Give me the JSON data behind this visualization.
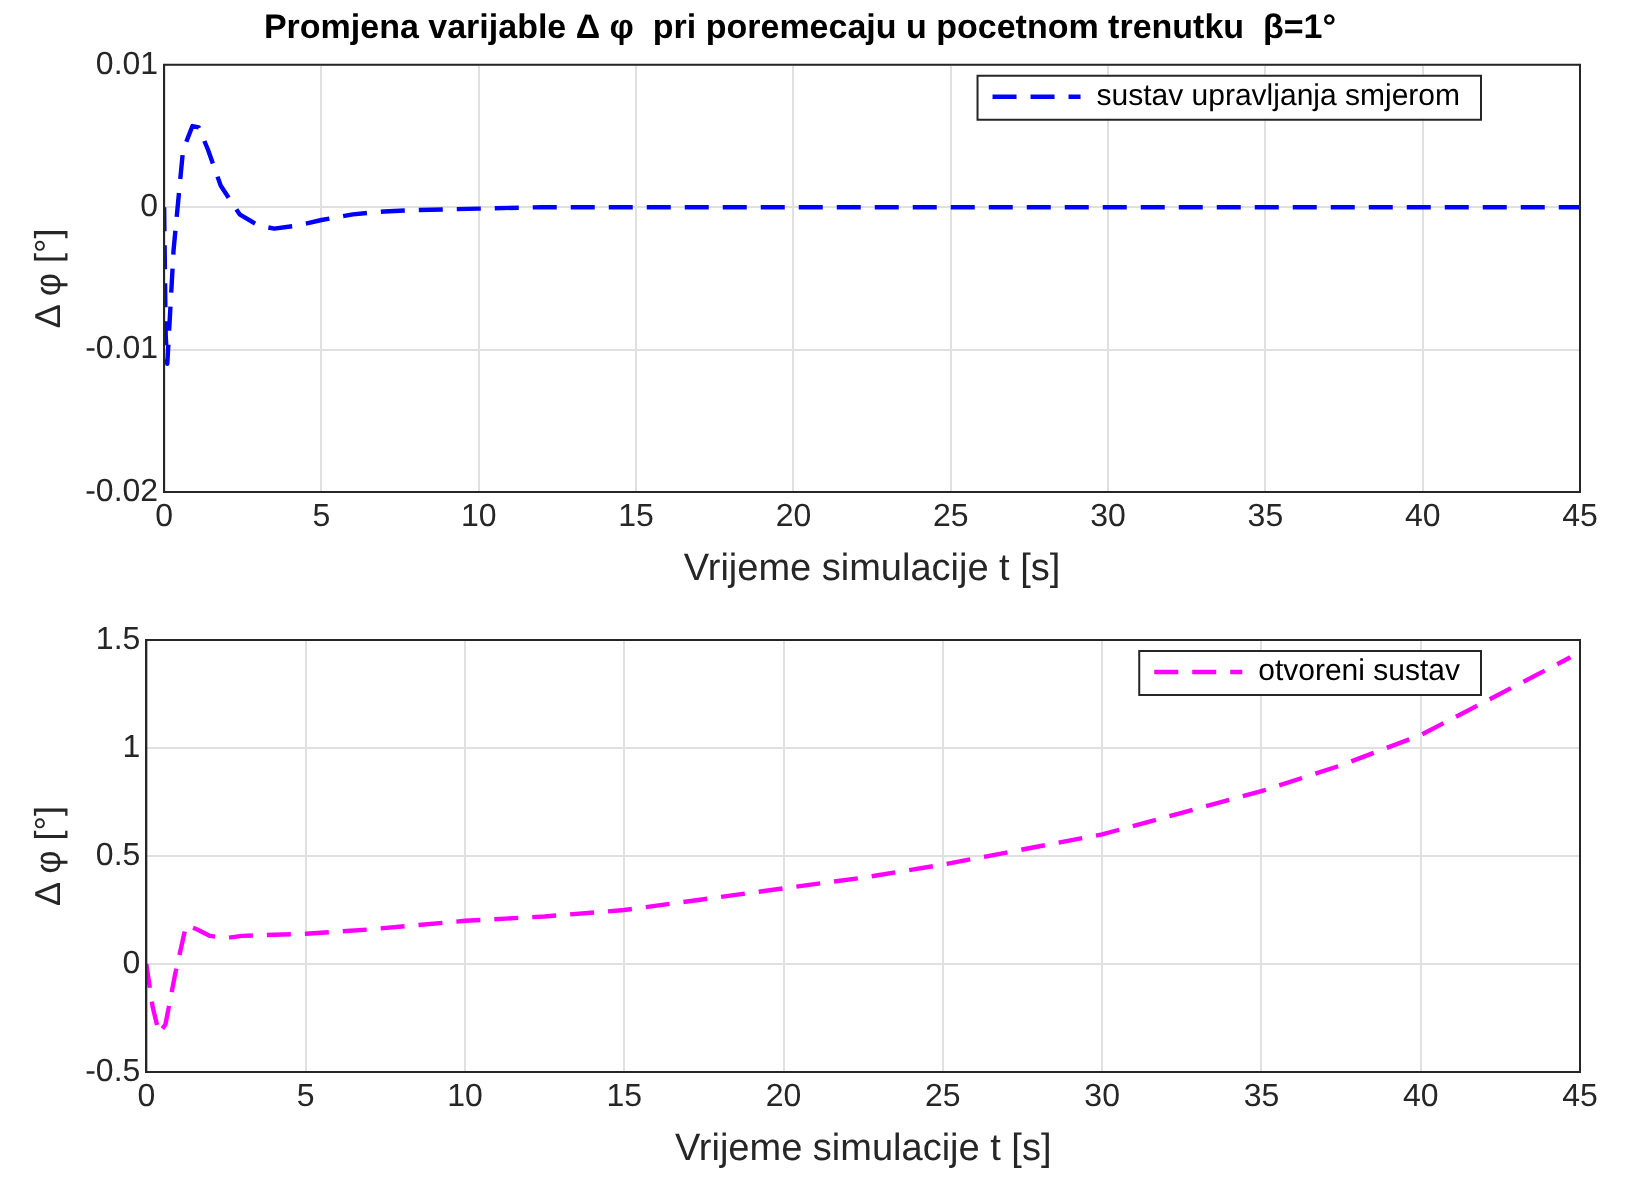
{
  "chart_data": [
    {
      "type": "line",
      "title": "Promjena varijable Δ φ  pri poremecaju u pocetnom trenutku  β=1°",
      "xlabel": "Vrijeme simulacije t [s]",
      "ylabel": "Δ φ [°]",
      "xlim": [
        0,
        45
      ],
      "xticks": [
        0,
        5,
        10,
        15,
        20,
        25,
        30,
        35,
        40,
        45
      ],
      "ylim": [
        -0.02,
        0.01
      ],
      "yticks": [
        -0.02,
        -0.01,
        0,
        0.01
      ],
      "grid": true,
      "legend": "top right",
      "line_style": "dashed",
      "marker": "none",
      "series": [
        {
          "name": "sustav upravljanja smjerom",
          "color": "#0000ff",
          "x": [
            0,
            0.05,
            0.1,
            0.3,
            0.6,
            0.9,
            1.1,
            1.4,
            1.8,
            2.4,
            3.0,
            3.5,
            4.2,
            5,
            6,
            7,
            8,
            10,
            12,
            15,
            20,
            25,
            30,
            35,
            40,
            45
          ],
          "values": [
            0,
            -0.009,
            -0.011,
            -0.003,
            0.004,
            0.0057,
            0.0056,
            0.004,
            0.0015,
            -0.0005,
            -0.0013,
            -0.0015,
            -0.0013,
            -0.0009,
            -0.0005,
            -0.0003,
            -0.0002,
            -0.0001,
            0,
            0,
            0,
            0,
            0,
            0,
            0,
            0
          ]
        }
      ]
    },
    {
      "type": "line",
      "xlabel": "Vrijeme simulacije t [s]",
      "ylabel": "Δ φ [°]",
      "xlim": [
        0,
        45
      ],
      "xticks": [
        0,
        5,
        10,
        15,
        20,
        25,
        30,
        35,
        40,
        45
      ],
      "ylim": [
        -0.5,
        1.5
      ],
      "yticks": [
        -0.5,
        0,
        0.5,
        1,
        1.5
      ],
      "grid": true,
      "legend": "top right",
      "line_style": "dashed",
      "marker": "none",
      "series": [
        {
          "name": "otvoreni sustav",
          "color": "#ff00ff",
          "x": [
            0,
            0.2,
            0.4,
            0.6,
            0.9,
            1.25,
            1.6,
            2.0,
            2.5,
            3,
            5,
            7,
            10,
            12.5,
            15,
            17.5,
            20,
            22.5,
            25,
            27.5,
            30,
            32.5,
            35,
            37.5,
            40,
            44.7
          ],
          "values": [
            0,
            -0.2,
            -0.32,
            -0.28,
            -0.05,
            0.18,
            0.16,
            0.13,
            0.12,
            0.13,
            0.14,
            0.16,
            0.2,
            0.22,
            0.25,
            0.3,
            0.35,
            0.4,
            0.46,
            0.53,
            0.6,
            0.7,
            0.8,
            0.92,
            1.06,
            1.42
          ]
        }
      ]
    }
  ]
}
